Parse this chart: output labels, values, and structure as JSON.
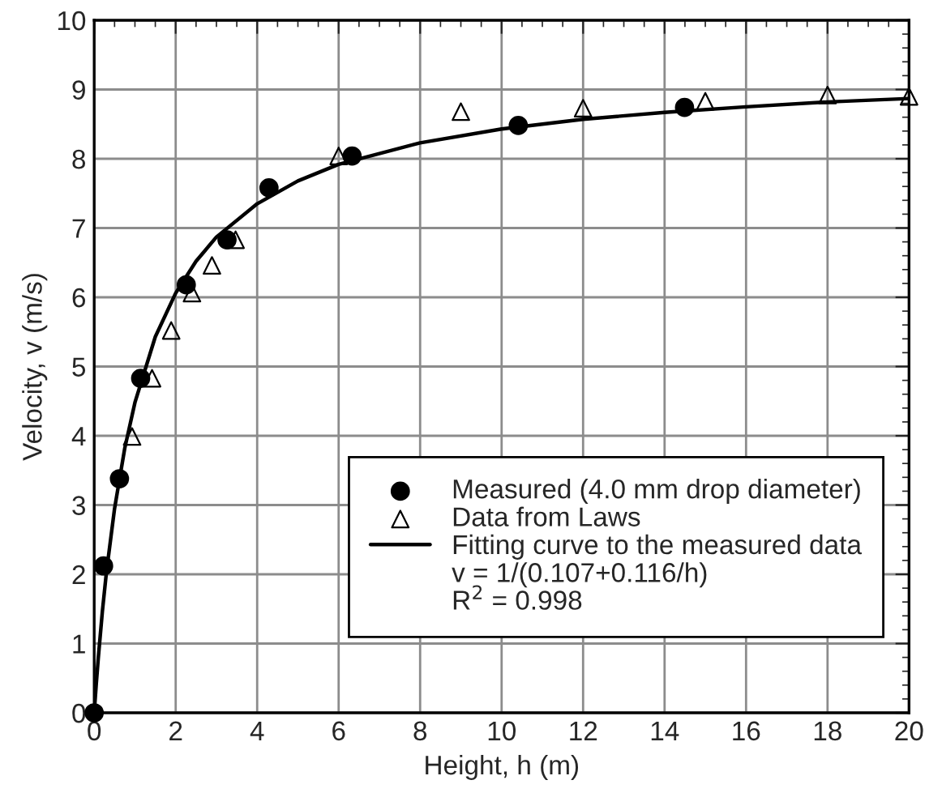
{
  "chart_data": {
    "type": "scatter",
    "xlabel": "Height, h (m)",
    "ylabel": "Velocity, v (m/s)",
    "xlim": [
      0,
      20
    ],
    "ylim": [
      0,
      10
    ],
    "xticks": [
      0,
      2,
      4,
      6,
      8,
      10,
      12,
      14,
      16,
      18,
      20
    ],
    "yticks": [
      0,
      1,
      2,
      3,
      4,
      5,
      6,
      7,
      8,
      9,
      10
    ],
    "grid": true,
    "legend": "bottom right",
    "annotations": [
      "v = 1/(0.107+0.116/h)",
      "R$^{2}$ = 0.998"
    ],
    "series": [
      {
        "name": "Measured (4.0 mm drop diameter)",
        "color": "#000000",
        "marker": "circle",
        "x": [
          0,
          0.23,
          0.62,
          1.14,
          2.26,
          3.26,
          4.29,
          6.33,
          10.41,
          14.49
        ],
        "values": [
          0,
          2.12,
          3.38,
          4.83,
          6.18,
          6.83,
          7.58,
          8.04,
          8.48,
          8.74
        ]
      },
      {
        "name": "Data from Laws",
        "color": "#000000",
        "marker": "triangle",
        "x": [
          0.93,
          1.42,
          1.89,
          2.4,
          2.89,
          3.47,
          6.0,
          9.0,
          12.0,
          15.0,
          18.0,
          20.0
        ],
        "values": [
          3.99,
          4.83,
          5.52,
          6.06,
          6.46,
          6.83,
          8.04,
          8.68,
          8.73,
          8.83,
          8.92,
          8.9
        ]
      },
      {
        "name": "Fitting curve to the measured data",
        "type": "line",
        "color": "#000000",
        "marker": "none",
        "line_style": "solid",
        "x": [
          0,
          0.05,
          0.1,
          0.2,
          0.3,
          0.5,
          0.75,
          1,
          1.5,
          2,
          2.5,
          3,
          4,
          5,
          6,
          8,
          10,
          12,
          14,
          16,
          18,
          20
        ],
        "values": [
          0,
          0.41,
          0.79,
          1.46,
          2.03,
          2.95,
          3.82,
          4.48,
          5.43,
          6.06,
          6.52,
          6.87,
          7.35,
          7.68,
          7.92,
          8.23,
          8.43,
          8.57,
          8.67,
          8.75,
          8.82,
          8.87
        ]
      }
    ]
  }
}
